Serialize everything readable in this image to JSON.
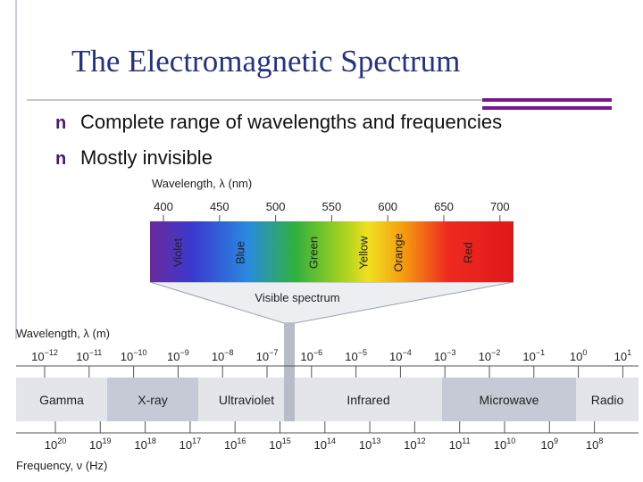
{
  "bullet_marker": "n",
  "title": "The Electromagnetic Spectrum",
  "bullets": [
    "Complete range of wavelengths and frequencies",
    "Mostly invisible"
  ],
  "visible": {
    "axis_label": "Wavelength, λ (nm)",
    "ticks": [
      400,
      450,
      500,
      550,
      600,
      650,
      700
    ],
    "colors": [
      "Violet",
      "Blue",
      "Green",
      "Yellow",
      "Orange",
      "Red"
    ],
    "caption": "Visible spectrum"
  },
  "wavelength_axis": {
    "label": "Wavelength, λ (m)",
    "ticks": [
      {
        "base": "10",
        "exp": "−12"
      },
      {
        "base": "10",
        "exp": "−11"
      },
      {
        "base": "10",
        "exp": "−10"
      },
      {
        "base": "10",
        "exp": "−9"
      },
      {
        "base": "10",
        "exp": "−8"
      },
      {
        "base": "10",
        "exp": "−7"
      },
      {
        "base": "10",
        "exp": "−6"
      },
      {
        "base": "10",
        "exp": "−5"
      },
      {
        "base": "10",
        "exp": "−4"
      },
      {
        "base": "10",
        "exp": "−3"
      },
      {
        "base": "10",
        "exp": "−2"
      },
      {
        "base": "10",
        "exp": "−1"
      },
      {
        "base": "10",
        "exp": "0"
      },
      {
        "base": "10",
        "exp": "1"
      }
    ]
  },
  "bands": [
    "Gamma",
    "X-ray",
    "Ultraviolet",
    "Infrared",
    "Microwave",
    "Radio"
  ],
  "frequency_axis": {
    "label": "Frequency, ν (Hz)",
    "ticks": [
      {
        "base": "10",
        "exp": "20"
      },
      {
        "base": "10",
        "exp": "19"
      },
      {
        "base": "10",
        "exp": "18"
      },
      {
        "base": "10",
        "exp": "17"
      },
      {
        "base": "10",
        "exp": "16"
      },
      {
        "base": "10",
        "exp": "15"
      },
      {
        "base": "10",
        "exp": "14"
      },
      {
        "base": "10",
        "exp": "13"
      },
      {
        "base": "10",
        "exp": "12"
      },
      {
        "base": "10",
        "exp": "11"
      },
      {
        "base": "10",
        "exp": "10"
      },
      {
        "base": "10",
        "exp": "9"
      },
      {
        "base": "10",
        "exp": "8"
      }
    ]
  }
}
